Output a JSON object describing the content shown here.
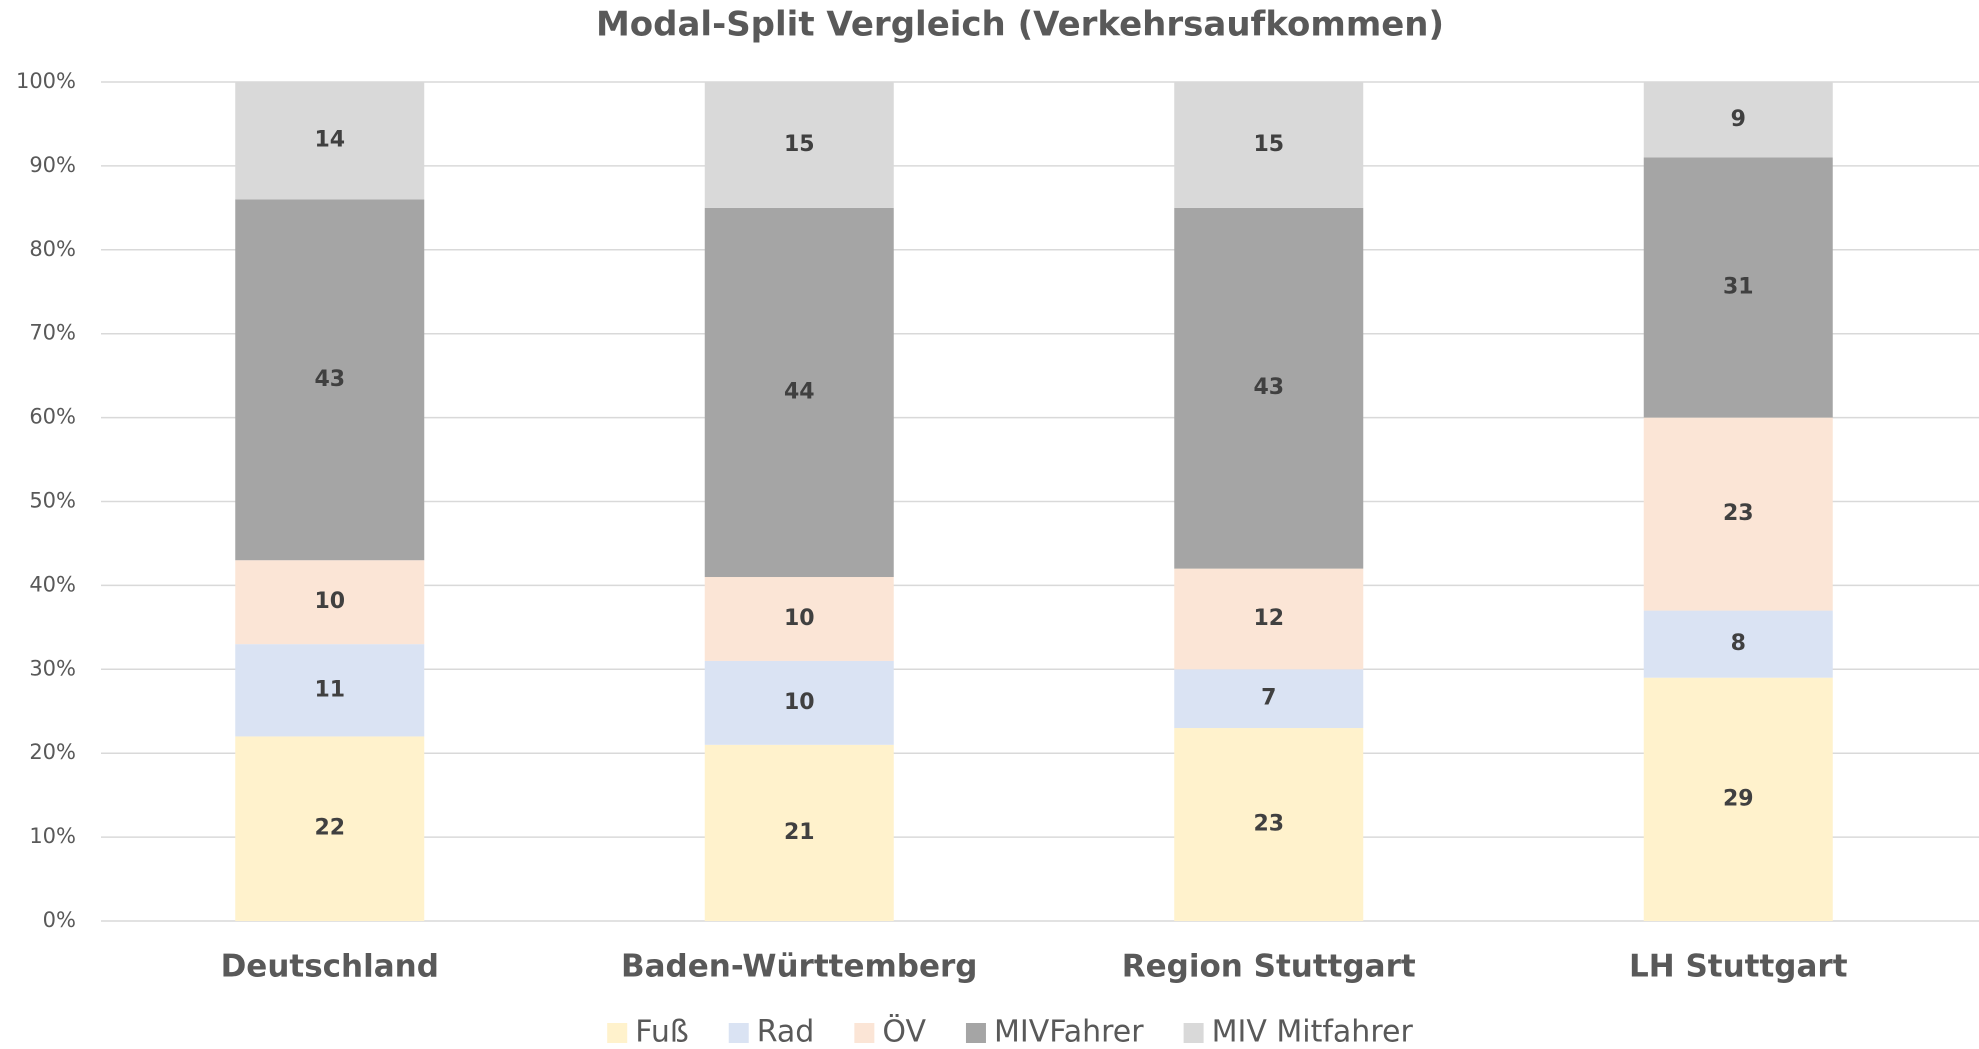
{
  "chart_data": {
    "type": "stacked_bar",
    "title": "Modal-Split Vergleich (Verkehrsaufkommen)",
    "categories": [
      "Deutschland",
      "Baden-Württemberg",
      "Region Stuttgart",
      "LH Stuttgart"
    ],
    "series": [
      {
        "name": "Fuß",
        "color": "#fff2cc",
        "values": [
          22,
          21,
          23,
          29
        ]
      },
      {
        "name": "Rad",
        "color": "#dae3f3",
        "values": [
          11,
          10,
          7,
          8
        ]
      },
      {
        "name": "ÖV",
        "color": "#fbe5d6",
        "values": [
          10,
          10,
          12,
          23
        ]
      },
      {
        "name": "MIVFahrer",
        "color": "#a5a5a5",
        "values": [
          43,
          44,
          43,
          31
        ]
      },
      {
        "name": "MIV Mitfahrer",
        "color": "#d9d9d9",
        "values": [
          14,
          15,
          15,
          9
        ]
      }
    ],
    "ylim": [
      0,
      100
    ],
    "yticks": [
      {
        "value": 0,
        "label": "0%"
      },
      {
        "value": 10,
        "label": "10%"
      },
      {
        "value": 20,
        "label": "20%"
      },
      {
        "value": 30,
        "label": "30%"
      },
      {
        "value": 40,
        "label": "40%"
      },
      {
        "value": 50,
        "label": "50%"
      },
      {
        "value": 60,
        "label": "60%"
      },
      {
        "value": 70,
        "label": "70%"
      },
      {
        "value": 80,
        "label": "80%"
      },
      {
        "value": 90,
        "label": "90%"
      },
      {
        "value": 100,
        "label": "100%"
      }
    ],
    "grid": true,
    "legend": "bottom"
  }
}
